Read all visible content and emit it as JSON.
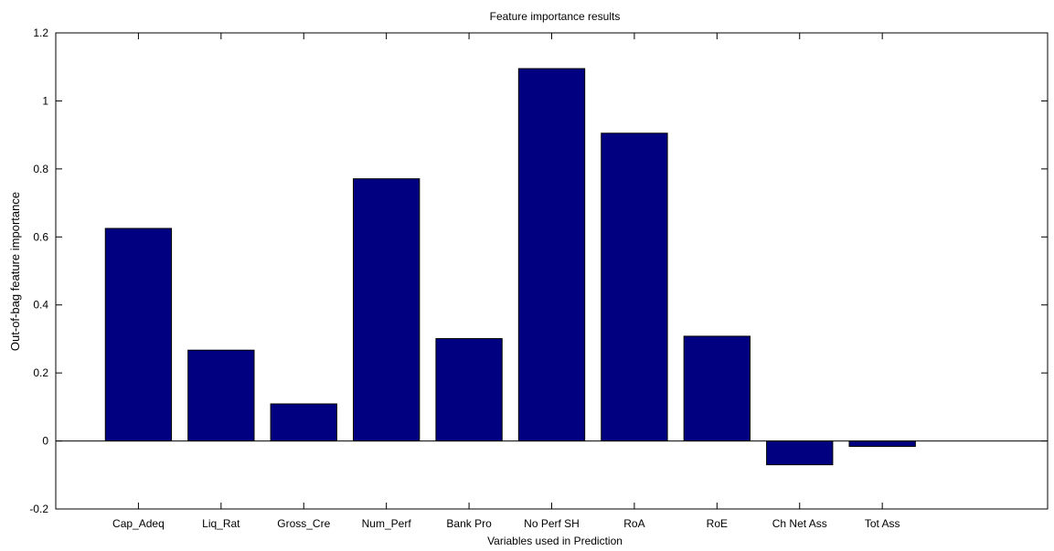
{
  "chart_data": {
    "type": "bar",
    "title": "Feature importance results",
    "xlabel": "Variables used in Prediction",
    "ylabel": "Out-of-bag feature importance",
    "categories": [
      "Cap_Adeq",
      "Liq_Rat",
      "Gross_Cre",
      "Num_Perf",
      "Bank Pro",
      "No Perf SH",
      "RoA",
      "RoE",
      "Ch Net Ass",
      "Tot Ass"
    ],
    "values": [
      0.625,
      0.267,
      0.109,
      0.771,
      0.301,
      1.095,
      0.905,
      0.308,
      -0.07,
      -0.016
    ],
    "ylim": [
      -0.2,
      1.2
    ],
    "xlim": [
      0,
      12
    ],
    "yticks": [
      -0.2,
      0,
      0.2,
      0.4,
      0.6,
      0.8,
      1,
      1.2
    ],
    "ytick_labels": [
      "-0.2",
      "0",
      "0.2",
      "0.4",
      "0.6",
      "0.8",
      "1",
      "1.2"
    ],
    "grid": false,
    "bar_color": "#000080",
    "edge_color": "#000000"
  }
}
